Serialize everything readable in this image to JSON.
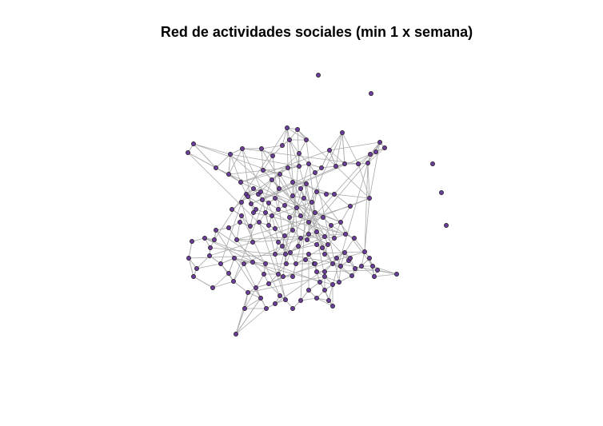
{
  "title": "Red de actividades sociales (min 1 x semana)",
  "colors": {
    "node_fill": "#6a3d9a",
    "node_stroke": "#1a1a1a",
    "edge": "#a9a9a9",
    "background": "#ffffff"
  }
}
